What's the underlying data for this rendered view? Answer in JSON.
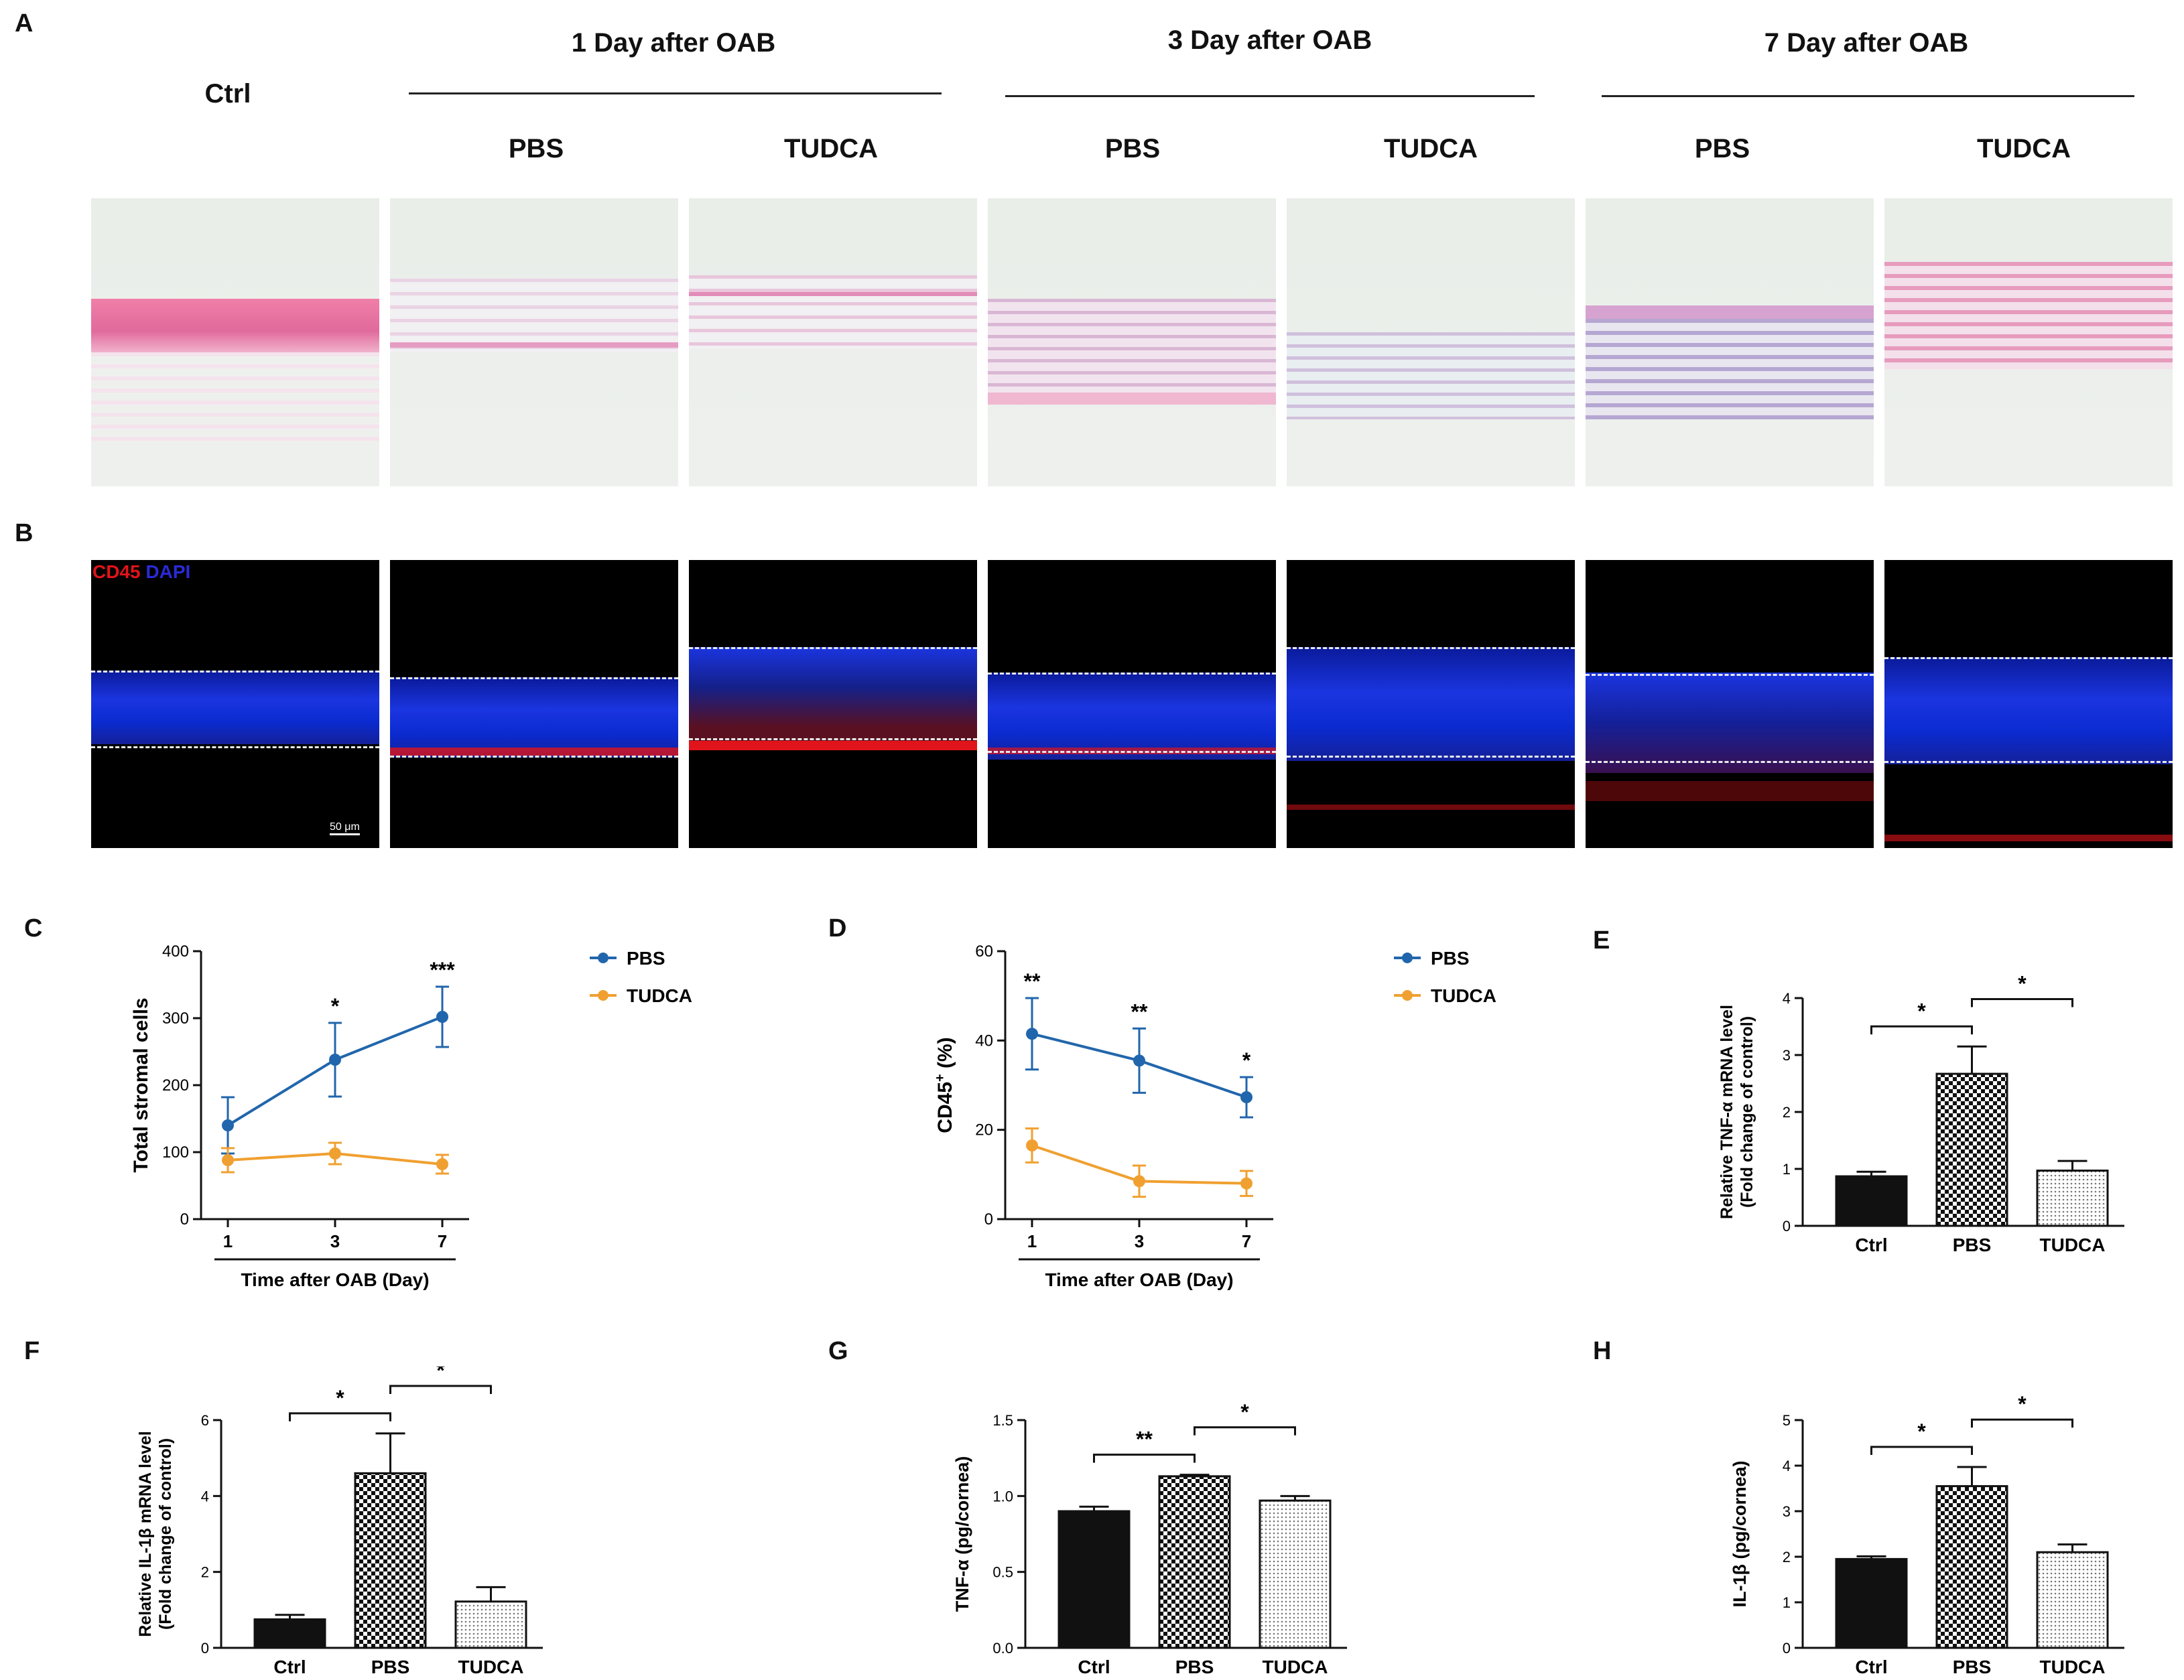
{
  "panels": {
    "A": "A",
    "B": "B",
    "C": "C",
    "D": "D",
    "E": "E",
    "F": "F",
    "G": "G",
    "H": "H"
  },
  "panelA": {
    "ctrl": "Ctrl",
    "groups": [
      "1 Day after OAB",
      "3 Day after OAB",
      "7 Day after OAB"
    ],
    "treatments": [
      "PBS",
      "TUDCA",
      "PBS",
      "TUDCA",
      "PBS",
      "TUDCA"
    ]
  },
  "panelB": {
    "stain_cd45": "CD45",
    "stain_dapi": "DAPI",
    "scale": "50 μm"
  },
  "colors": {
    "pbs": "#2166ac",
    "tudca": "#f0a030",
    "he_pink": "#e88fb4",
    "dapi": "#1a36d8",
    "cd45": "#e0141a"
  },
  "chart_data": [
    {
      "id": "C",
      "type": "line",
      "xlabel": "Time after OAB (Day)",
      "ylabel": "Total stromal cells",
      "categories": [
        "1",
        "3",
        "7"
      ],
      "ylim": [
        0,
        400
      ],
      "yticks": [
        "0",
        "100",
        "200",
        "300",
        "400"
      ],
      "series": [
        {
          "name": "PBS",
          "values": [
            140,
            238,
            302
          ],
          "errors": [
            42,
            55,
            45
          ]
        },
        {
          "name": "TUDCA",
          "values": [
            88,
            98,
            82
          ],
          "errors": [
            18,
            16,
            14
          ]
        }
      ],
      "significance": [
        "",
        "*",
        "***"
      ],
      "legend": "top-right"
    },
    {
      "id": "D",
      "type": "line",
      "xlabel": "Time after OAB (Day)",
      "ylabel": "CD45",
      "ylabel_sup": "+",
      "ylabel_unit": " (%)",
      "categories": [
        "1",
        "3",
        "7"
      ],
      "ylim": [
        0,
        60
      ],
      "yticks": [
        "0",
        "20",
        "40",
        "60"
      ],
      "series": [
        {
          "name": "PBS",
          "values": [
            41.5,
            35.5,
            27.3
          ],
          "errors": [
            8,
            7.2,
            4.5
          ]
        },
        {
          "name": "TUDCA",
          "values": [
            16.5,
            8.5,
            8
          ],
          "errors": [
            3.8,
            3.5,
            2.8
          ]
        }
      ],
      "significance": [
        "**",
        "**",
        "*"
      ],
      "legend": "top-right"
    },
    {
      "id": "E",
      "type": "bar",
      "ylabel": "Relative TNF-α mRNA level",
      "ylabel2": "(Fold change of control)",
      "categories": [
        "Ctrl",
        "PBS",
        "TUDCA"
      ],
      "values": [
        0.87,
        2.67,
        0.97
      ],
      "errors": [
        0.08,
        0.48,
        0.17
      ],
      "ylim": [
        0,
        4
      ],
      "yticks": [
        "0",
        "1",
        "2",
        "3",
        "4"
      ],
      "brackets": [
        {
          "from": 0,
          "to": 1,
          "label": "*"
        },
        {
          "from": 1,
          "to": 2,
          "label": "*"
        }
      ]
    },
    {
      "id": "F",
      "type": "bar",
      "ylabel": "Relative IL-1β mRNA level",
      "ylabel2": "(Fold change of control)",
      "categories": [
        "Ctrl",
        "PBS",
        "TUDCA"
      ],
      "values": [
        0.75,
        4.6,
        1.22
      ],
      "errors": [
        0.12,
        1.05,
        0.38
      ],
      "ylim": [
        0,
        6
      ],
      "yticks": [
        "0",
        "2",
        "4",
        "6"
      ],
      "brackets": [
        {
          "from": 0,
          "to": 1,
          "label": "*"
        },
        {
          "from": 1,
          "to": 2,
          "label": "*"
        }
      ]
    },
    {
      "id": "G",
      "type": "bar",
      "ylabel": "TNF-α (pg/cornea)",
      "ylabel2": "",
      "categories": [
        "Ctrl",
        "PBS",
        "TUDCA"
      ],
      "values": [
        0.9,
        1.13,
        0.97
      ],
      "errors": [
        0.03,
        0.01,
        0.03
      ],
      "ylim": [
        0,
        1.5
      ],
      "yticks": [
        "0.0",
        "0.5",
        "1.0",
        "1.5"
      ],
      "brackets": [
        {
          "from": 0,
          "to": 1,
          "label": "**"
        },
        {
          "from": 1,
          "to": 2,
          "label": "*"
        }
      ]
    },
    {
      "id": "H",
      "type": "bar",
      "ylabel": "IL-1β (pg/cornea)",
      "ylabel2": "",
      "categories": [
        "Ctrl",
        "PBS",
        "TUDCA"
      ],
      "values": [
        1.95,
        3.55,
        2.1
      ],
      "errors": [
        0.06,
        0.42,
        0.17
      ],
      "ylim": [
        0,
        5
      ],
      "yticks": [
        "0",
        "1",
        "2",
        "3",
        "4",
        "5"
      ],
      "brackets": [
        {
          "from": 0,
          "to": 1,
          "label": "*"
        },
        {
          "from": 1,
          "to": 2,
          "label": "*"
        }
      ]
    }
  ]
}
